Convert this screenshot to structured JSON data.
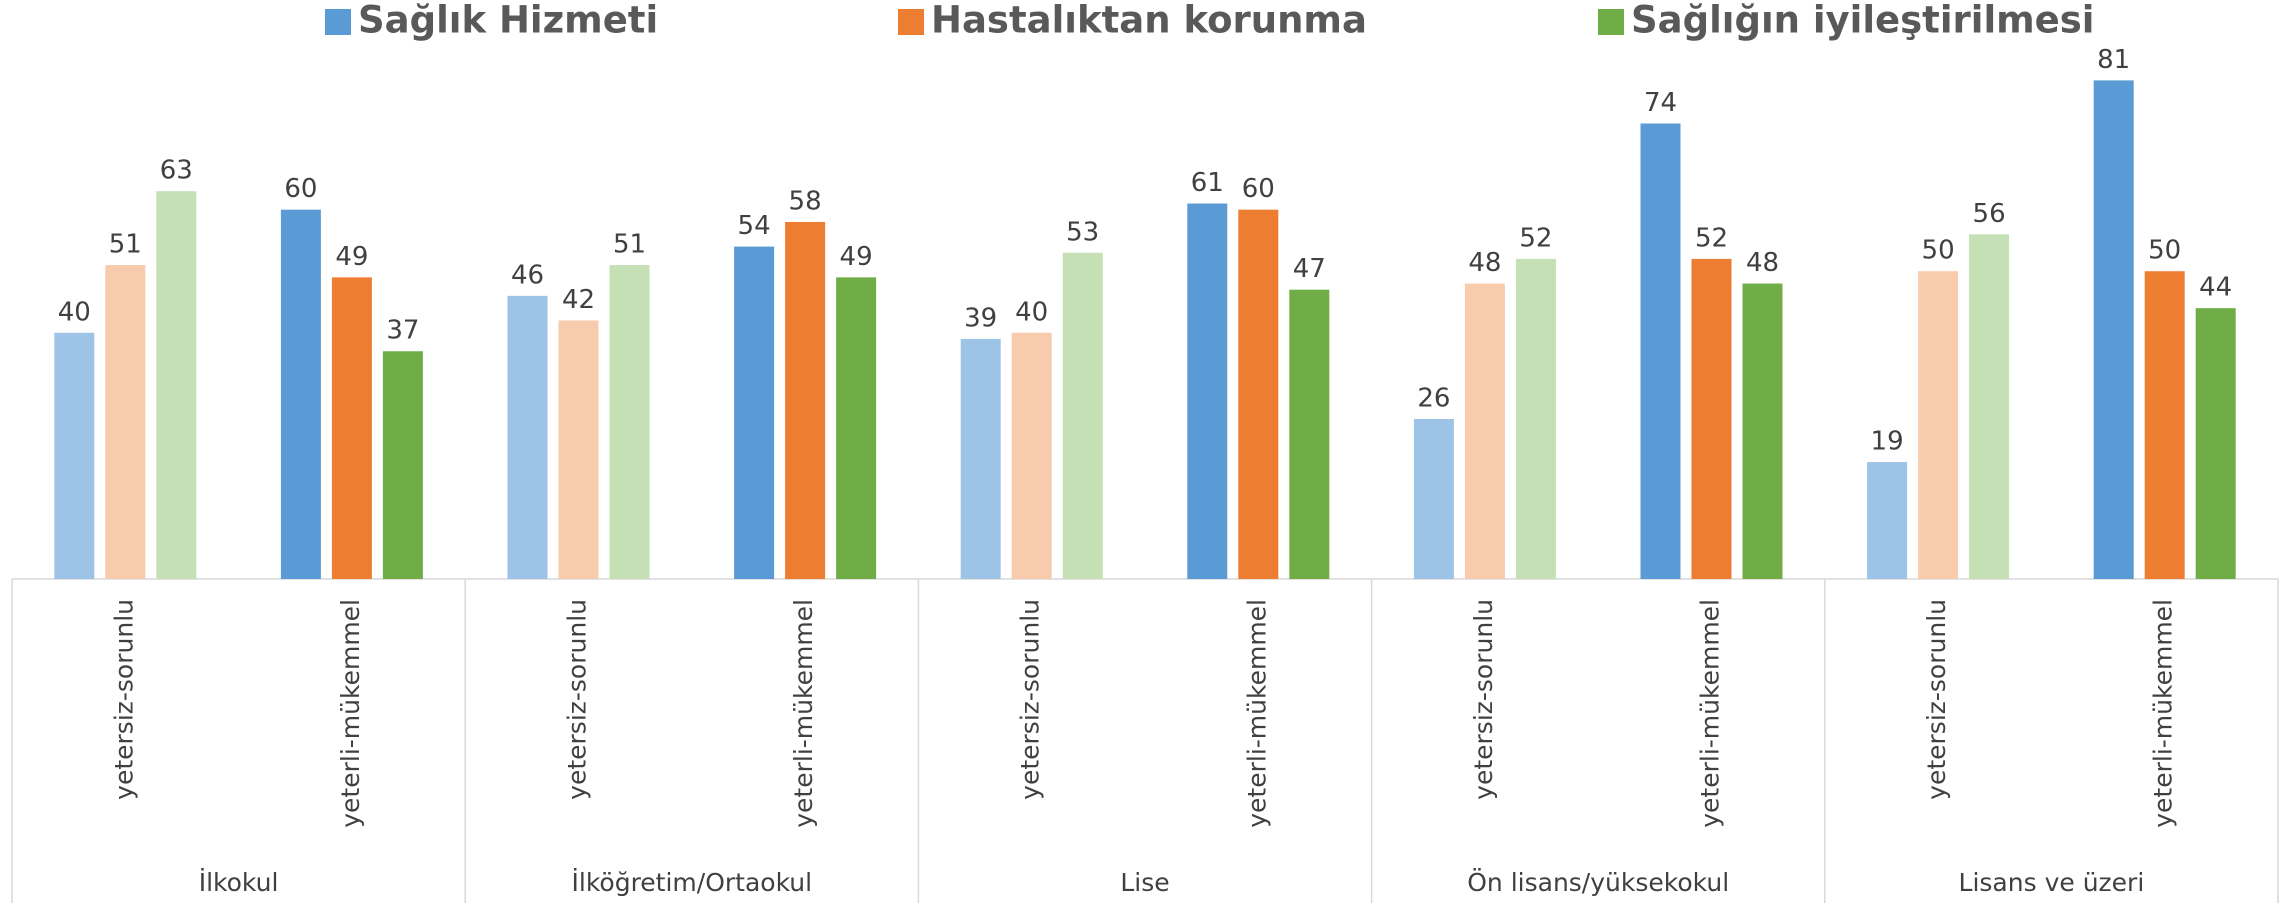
{
  "chart_data": {
    "type": "bar",
    "groups": [
      "İlkokul",
      "İlköğretim/Ortaokul",
      "Lise",
      "Ön lisans/yüksekokul",
      "Lisans ve üzeri"
    ],
    "categories": [
      "yetersiz-sorunlu",
      "yeterli-mükemmel",
      "yetersiz-sorunlu",
      "yeterli-mükemmel",
      "yetersiz-sorunlu",
      "yeterli-mükemmel",
      "yetersiz-sorunlu",
      "yeterli-mükemmel",
      "yetersiz-sorunlu",
      "yeterli-mükemmel"
    ],
    "series": [
      {
        "name": "Sağlık Hizmeti",
        "colors": [
          "#9dc3e6",
          "#5b9bd5"
        ],
        "values": [
          40,
          60,
          46,
          54,
          39,
          61,
          26,
          74,
          19,
          81
        ]
      },
      {
        "name": "Hastalıktan korunma",
        "colors": [
          "#f8cbad",
          "#ed7d31"
        ],
        "values": [
          51,
          49,
          42,
          58,
          40,
          60,
          48,
          52,
          50,
          50
        ]
      },
      {
        "name": "Sağlığın iyileştirilmesi",
        "colors": [
          "#c5e0b4",
          "#70ad47"
        ],
        "values": [
          63,
          37,
          51,
          49,
          53,
          47,
          52,
          48,
          56,
          44
        ]
      }
    ],
    "ylim": [
      0,
      90
    ],
    "legend": "top"
  }
}
